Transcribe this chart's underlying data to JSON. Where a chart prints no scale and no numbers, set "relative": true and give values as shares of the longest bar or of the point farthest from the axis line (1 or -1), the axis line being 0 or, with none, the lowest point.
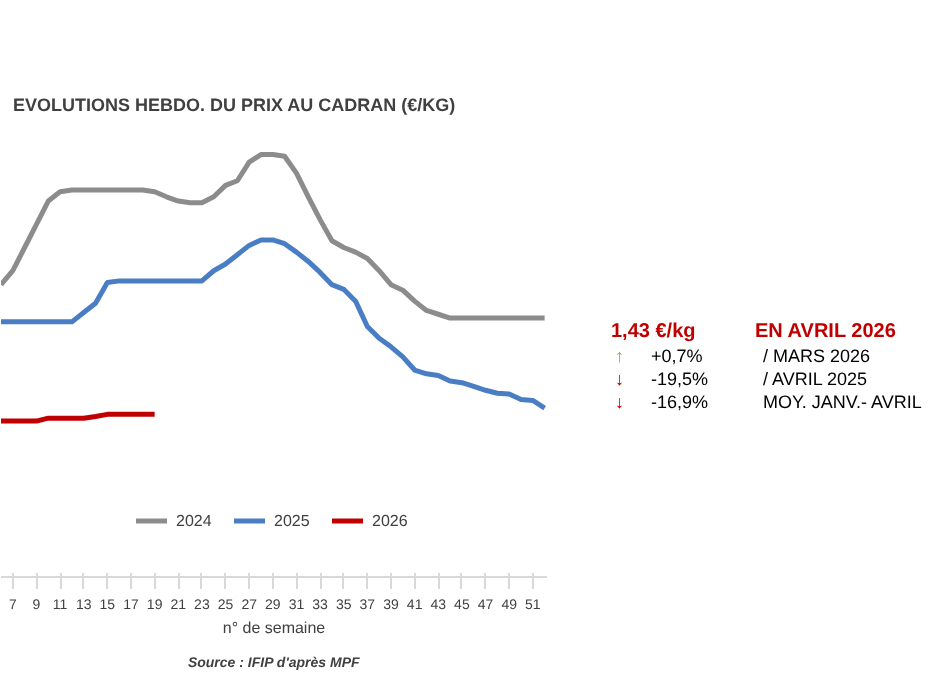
{
  "chart_data": [
    {
      "type": "line",
      "title": "EVOLUTIONS HEBDO. DU PRIX AU CADRAN (€/KG)",
      "xlabel": "n° de semaine",
      "relative": true,
      "x": [
        6,
        7,
        8,
        9,
        10,
        11,
        12,
        13,
        14,
        15,
        16,
        17,
        18,
        19,
        20,
        21,
        22,
        23,
        24,
        25,
        26,
        27,
        28,
        29,
        30,
        31,
        32,
        33,
        34,
        35,
        36,
        37,
        38,
        39,
        40,
        41,
        42,
        43,
        44,
        45,
        46,
        47,
        48,
        49,
        50,
        51,
        52
      ],
      "xlim": [
        6,
        52.2
      ],
      "xticks": [
        7,
        9,
        11,
        13,
        15,
        17,
        19,
        21,
        23,
        25,
        27,
        29,
        31,
        33,
        35,
        37,
        39,
        41,
        43,
        45,
        47,
        49,
        51
      ],
      "series": [
        {
          "name": "2024",
          "color": "#8c8c8c",
          "values": [
            0.692,
            0.725,
            0.78,
            0.835,
            0.89,
            0.912,
            0.916,
            0.916,
            0.916,
            0.916,
            0.916,
            0.916,
            0.916,
            0.912,
            0.9,
            0.89,
            0.886,
            0.886,
            0.9,
            0.927,
            0.938,
            0.982,
            1.0,
            1.0,
            0.996,
            0.956,
            0.9,
            0.846,
            0.796,
            0.78,
            0.769,
            0.754,
            0.725,
            0.692,
            0.679,
            0.653,
            0.631,
            0.622,
            0.613,
            0.613,
            0.613,
            0.613,
            0.613,
            0.613,
            0.613,
            0.613,
            0.613
          ]
        },
        {
          "name": "2025",
          "color": "#4a7ec4",
          "values": [
            0.604,
            0.604,
            0.604,
            0.604,
            0.604,
            0.604,
            0.604,
            0.626,
            0.648,
            0.697,
            0.701,
            0.701,
            0.701,
            0.701,
            0.701,
            0.701,
            0.701,
            0.701,
            0.725,
            0.741,
            0.763,
            0.785,
            0.798,
            0.798,
            0.789,
            0.769,
            0.747,
            0.721,
            0.692,
            0.681,
            0.653,
            0.593,
            0.565,
            0.545,
            0.521,
            0.49,
            0.481,
            0.477,
            0.464,
            0.46,
            0.451,
            0.442,
            0.435,
            0.433,
            0.42,
            0.418,
            0.4
          ]
        },
        {
          "name": "2026",
          "color": "#c00000",
          "x": [
            6,
            7,
            8,
            9,
            10,
            11,
            12,
            13,
            14,
            15,
            16,
            17,
            18,
            19
          ],
          "values": [
            0.369,
            0.369,
            0.369,
            0.369,
            0.376,
            0.376,
            0.376,
            0.376,
            0.38,
            0.385,
            0.385,
            0.385,
            0.385,
            0.385
          ]
        }
      ],
      "legend": "bottom",
      "line_style": "solid",
      "annotations": [
        "Source : IFIP d'après MPF"
      ]
    },
    {
      "type": "other",
      "annotations": [
        "1,43  €/kg",
        "EN AVRIL 2026",
        "↑",
        "+0,7%",
        "/ MARS 2026",
        "↓",
        "-19,5%",
        "/ AVRIL 2025",
        "↓",
        "-16,9%",
        "MOY. JANV.- AVRIL"
      ],
      "colors": [
        "#c00000",
        "#c00000",
        "#70ad47",
        "#000000",
        "#000000",
        "#c00000",
        "#000000",
        "#000000",
        "#c00000",
        "#000000",
        "#000000"
      ]
    }
  ]
}
